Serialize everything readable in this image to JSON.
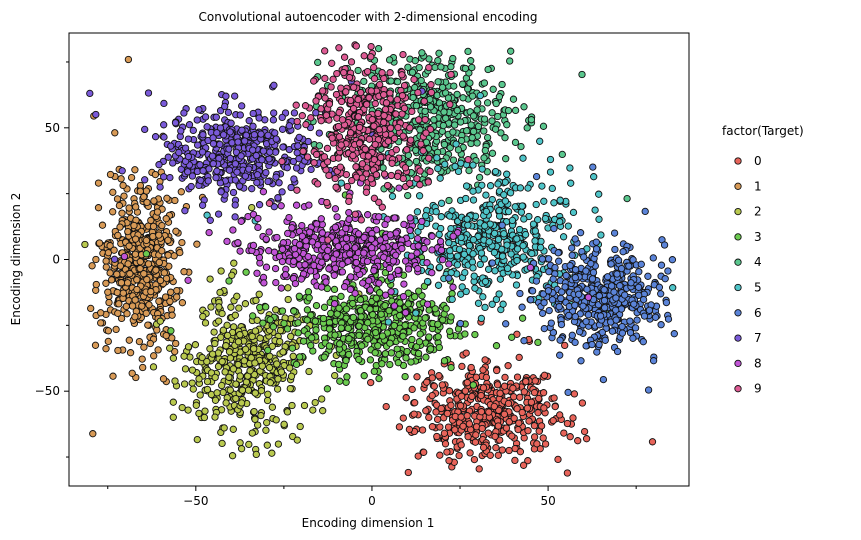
{
  "chart_data": {
    "type": "scatter",
    "title": "Convolutional autoencoder with 2-dimensional encoding",
    "xlabel": "Encoding dimension 1",
    "ylabel": "Encoding dimension 2",
    "xlim": [
      -86,
      90
    ],
    "ylim": [
      -86,
      86
    ],
    "xticks": [
      -50,
      0,
      50
    ],
    "yticks": [
      -50,
      0,
      50
    ],
    "xtick_labels": [
      "−50",
      "0",
      "50"
    ],
    "ytick_labels": [
      "−50",
      "0",
      "50"
    ],
    "grid": false,
    "legend": {
      "title": "factor(Target)",
      "placement": "right"
    },
    "series": [
      {
        "name": "0",
        "color": "#e8645a",
        "cluster": {
          "cx": 33,
          "cy": -58,
          "sx": 10,
          "sy": 9,
          "n": 460
        }
      },
      {
        "name": "1",
        "color": "#d89a56",
        "cluster": {
          "cx": -66,
          "cy": -2,
          "sx": 5.5,
          "sy": 15,
          "n": 520
        }
      },
      {
        "name": "2",
        "color": "#b9c94f",
        "cluster": {
          "cx": -36,
          "cy": -40,
          "sx": 8,
          "sy": 13,
          "n": 430
        }
      },
      {
        "name": "3",
        "color": "#6bcb4f",
        "cluster": {
          "cx": 0,
          "cy": -25,
          "sx": 12,
          "sy": 8,
          "n": 500
        }
      },
      {
        "name": "4",
        "color": "#5ac78e",
        "cluster": {
          "cx": 18,
          "cy": 55,
          "sx": 11,
          "sy": 12,
          "n": 460
        }
      },
      {
        "name": "5",
        "color": "#4fc5c9",
        "cluster": {
          "cx": 33,
          "cy": 8,
          "sx": 12,
          "sy": 11,
          "n": 470
        }
      },
      {
        "name": "6",
        "color": "#5b84d9",
        "cluster": {
          "cx": 65,
          "cy": -14,
          "sx": 9,
          "sy": 9,
          "n": 480
        }
      },
      {
        "name": "7",
        "color": "#7a5ad9",
        "cluster": {
          "cx": -38,
          "cy": 40,
          "sx": 10,
          "sy": 9,
          "n": 460
        }
      },
      {
        "name": "8",
        "color": "#c154d6",
        "cluster": {
          "cx": -8,
          "cy": 4,
          "sx": 13,
          "sy": 7,
          "n": 480
        }
      },
      {
        "name": "9",
        "color": "#de5b94",
        "cluster": {
          "cx": -2,
          "cy": 50,
          "sx": 8,
          "sy": 12,
          "n": 420
        }
      }
    ]
  }
}
